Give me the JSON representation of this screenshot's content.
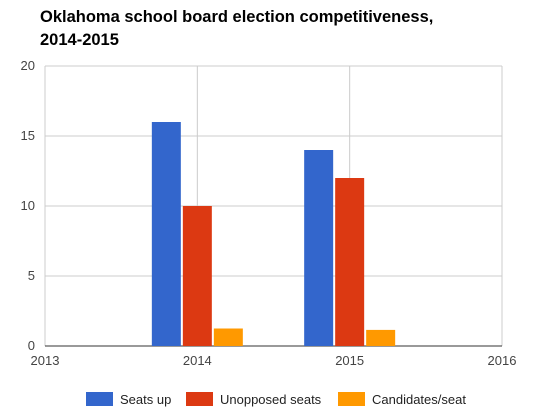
{
  "chart_data": {
    "type": "bar",
    "title_lines": [
      "Oklahoma school board election competitiveness,",
      "2014-2015"
    ],
    "xlabel": "",
    "ylabel": "",
    "x_axis": {
      "min": 2013,
      "max": 2016,
      "ticks": [
        "2013",
        "2014",
        "2015",
        "2016"
      ]
    },
    "y_axis": {
      "min": 0,
      "max": 20,
      "ticks": [
        "0",
        "5",
        "10",
        "15",
        "20"
      ]
    },
    "grid": true,
    "legend_position": "bottom",
    "categories": [
      "2014",
      "2015"
    ],
    "category_x": [
      2014,
      2015
    ],
    "series": [
      {
        "name": "Seats up",
        "color": "#3366cc",
        "values": [
          16,
          14
        ]
      },
      {
        "name": "Unopposed seats",
        "color": "#dc3912",
        "values": [
          10,
          12
        ]
      },
      {
        "name": "Candidates/seat",
        "color": "#ff9900",
        "values": [
          1.25,
          1.15
        ]
      }
    ]
  }
}
